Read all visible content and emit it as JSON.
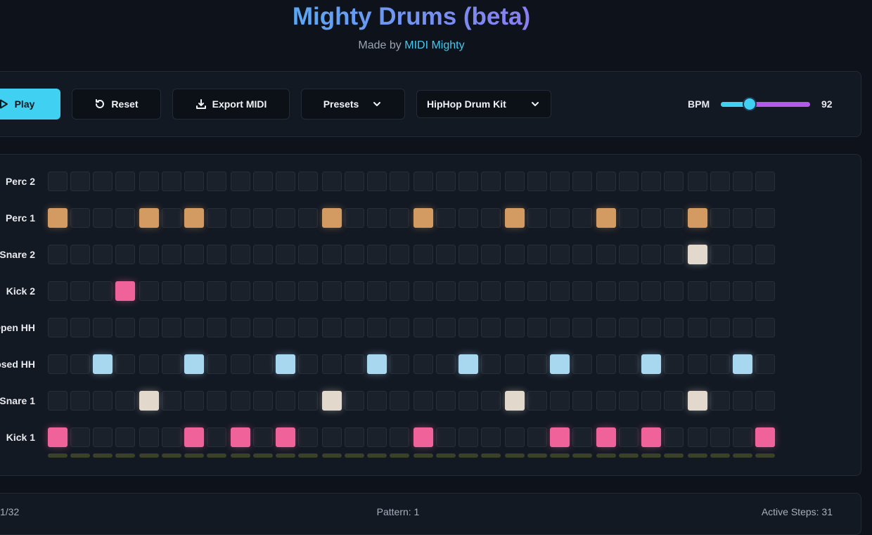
{
  "header": {
    "title": "Mighty Drums (beta)",
    "subtitle_prefix": "Made by",
    "subtitle_link": "MIDI Mighty"
  },
  "toolbar": {
    "play": "Play",
    "reset": "Reset",
    "export": "Export MIDI",
    "presets": "Presets",
    "kit": "HipHop Drum Kit",
    "bpm_label": "BPM",
    "bpm": 92,
    "bpm_range": [
      40,
      200
    ]
  },
  "sequencer": {
    "steps": 32,
    "tracks": [
      {
        "label": "Perc 2",
        "color": "#d39b62",
        "active": []
      },
      {
        "label": "Perc 1",
        "color": "#d39b62",
        "active": [
          0,
          4,
          6,
          12,
          16,
          20,
          24,
          28
        ]
      },
      {
        "label": "Snare 2",
        "color": "#e2d9cc",
        "active": [
          28
        ]
      },
      {
        "label": "Kick 2",
        "color": "#f0639a",
        "active": [
          3
        ]
      },
      {
        "label": "Open HH",
        "color": "#a8d8f0",
        "active": []
      },
      {
        "label": "Closed HH",
        "color": "#a8d8f0",
        "active": [
          2,
          6,
          10,
          14,
          18,
          22,
          26,
          30
        ]
      },
      {
        "label": "Snare 1",
        "color": "#e2d9cc",
        "active": [
          4,
          12,
          20,
          28
        ]
      },
      {
        "label": "Kick 1",
        "color": "#f0639a",
        "active": [
          0,
          6,
          8,
          10,
          16,
          22,
          24,
          26,
          31
        ]
      }
    ]
  },
  "footer": {
    "step": "1/32",
    "pattern": "Pattern: 1",
    "active_steps": "Active Steps: 31"
  }
}
